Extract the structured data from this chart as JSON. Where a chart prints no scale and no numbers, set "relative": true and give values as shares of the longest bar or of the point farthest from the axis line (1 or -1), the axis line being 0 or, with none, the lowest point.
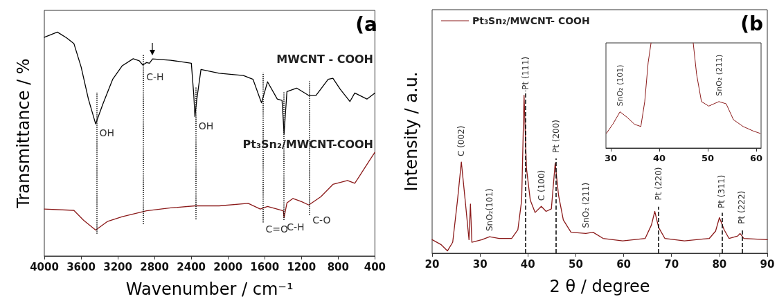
{
  "chart_data": [
    {
      "type": "line",
      "xlabel": "Wavenumber / cm⁻¹",
      "ylabel": "Transmittance / %",
      "relative": true,
      "xlim": [
        4000,
        400
      ],
      "xticks": [
        4000,
        3600,
        3200,
        2800,
        2400,
        2000,
        1600,
        1200,
        800,
        400
      ],
      "marker": "none",
      "line_style": "solid",
      "series": [
        {
          "name": "MWCNT - COOH",
          "color": "#000000",
          "x": [
            4000,
            3858,
            3757,
            3678,
            3599,
            3520,
            3441,
            3362,
            3256,
            3151,
            3032,
            2966,
            2927,
            2887,
            2855,
            2821,
            2623,
            2399,
            2373,
            2360,
            2339,
            2294,
            2096,
            1832,
            1727,
            1635,
            1569,
            1463,
            1411,
            1389,
            1358,
            1252,
            1120,
            1041,
            909,
            857,
            778,
            672,
            619,
            487,
            400
          ],
          "values": [
            0.977,
            1.0,
            0.974,
            0.949,
            0.844,
            0.701,
            0.59,
            0.679,
            0.789,
            0.85,
            0.881,
            0.872,
            0.853,
            0.864,
            0.861,
            0.88,
            0.874,
            0.861,
            0.723,
            0.623,
            0.701,
            0.833,
            0.816,
            0.806,
            0.789,
            0.684,
            0.778,
            0.701,
            0.695,
            0.546,
            0.734,
            0.75,
            0.717,
            0.717,
            0.789,
            0.794,
            0.745,
            0.69,
            0.728,
            0.701,
            0.728
          ]
        },
        {
          "name": "Pt₃Sn₂/MWCNT-COOH",
          "color": "#8b1a1a",
          "x": [
            4000,
            3678,
            3573,
            3441,
            3309,
            3151,
            2887,
            2623,
            2360,
            2096,
            1780,
            1648,
            1569,
            1397,
            1389,
            1358,
            1292,
            1199,
            1120,
            988,
            857,
            698,
            619,
            566,
            461,
            400
          ],
          "values": [
            0.21,
            0.204,
            0.16,
            0.116,
            0.155,
            0.176,
            0.202,
            0.215,
            0.224,
            0.224,
            0.235,
            0.21,
            0.221,
            0.202,
            0.171,
            0.237,
            0.257,
            0.243,
            0.228,
            0.265,
            0.32,
            0.337,
            0.325,
            0.358,
            0.425,
            0.463
          ]
        }
      ],
      "ref_lines": [
        {
          "axis": "x",
          "value": 3430,
          "color": "#000000",
          "line_style": "dotted"
        },
        {
          "axis": "x",
          "value": 2920,
          "color": "#000000",
          "line_style": "dotted"
        },
        {
          "axis": "x",
          "value": 2350,
          "color": "#000000",
          "line_style": "dotted"
        },
        {
          "axis": "x",
          "value": 1620,
          "color": "#000000",
          "line_style": "dotted"
        },
        {
          "axis": "x",
          "value": 1390,
          "color": "#000000",
          "line_style": "dotted"
        },
        {
          "axis": "x",
          "value": 1110,
          "color": "#000000",
          "line_style": "dotted"
        }
      ],
      "annotations": [
        "(a",
        {
          "text": "OH",
          "x": 3430,
          "y": 0.59
        },
        {
          "text": "C-H",
          "x": 2920,
          "y": 0.84
        },
        {
          "text": "OH",
          "x": 2350,
          "y": 0.62
        },
        {
          "text": "C=O",
          "x": 1620,
          "y": 0.16
        },
        {
          "text": "C-H",
          "x": 1389,
          "y": 0.171
        },
        {
          "text": "C-O",
          "x": 1110,
          "y": 0.2
        }
      ]
    },
    {
      "type": "line",
      "xlabel": "2 θ / degree",
      "ylabel": "Intensity / a.u.",
      "relative": true,
      "xlim": [
        20,
        90
      ],
      "xticks": [
        20,
        30,
        40,
        50,
        60,
        70,
        80,
        90
      ],
      "marker": "none",
      "line_style": "solid",
      "legend": "top left",
      "series": [
        {
          "name": "Pt₃Sn₂/MWCNT- COOH",
          "color": "#8b1a1a",
          "x": [
            20.0,
            21.9,
            23.2,
            24.3,
            25.3,
            26.1,
            26.9,
            27.7,
            28.0,
            28.3,
            30.4,
            32.0,
            34.0,
            36.6,
            37.9,
            38.7,
            39.2,
            39.7,
            40.5,
            41.5,
            42.8,
            43.8,
            44.9,
            45.7,
            46.4,
            47.4,
            49.0,
            52.1,
            53.6,
            55.7,
            59.8,
            64.5,
            65.8,
            66.5,
            67.3,
            68.6,
            72.7,
            77.9,
            79.2,
            80.0,
            81.0,
            82.0,
            83.8,
            84.3,
            85.1,
            90.0
          ],
          "values": [
            0.086,
            0.054,
            0.015,
            0.07,
            0.336,
            0.578,
            0.336,
            0.086,
            0.312,
            0.07,
            0.086,
            0.105,
            0.094,
            0.094,
            0.148,
            0.336,
            1.0,
            0.539,
            0.336,
            0.258,
            0.297,
            0.265,
            0.281,
            0.57,
            0.367,
            0.211,
            0.133,
            0.125,
            0.133,
            0.094,
            0.078,
            0.094,
            0.179,
            0.265,
            0.164,
            0.094,
            0.078,
            0.094,
            0.14,
            0.226,
            0.148,
            0.094,
            0.109,
            0.125,
            0.094,
            0.086
          ]
        }
      ],
      "ref_lines": [
        {
          "axis": "x",
          "value": 39.5,
          "color": "#000000",
          "line_style": "dashed"
        },
        {
          "axis": "x",
          "value": 45.9,
          "color": "#000000",
          "line_style": "dashed"
        },
        {
          "axis": "x",
          "value": 67.3,
          "color": "#000000",
          "line_style": "dashed"
        },
        {
          "axis": "x",
          "value": 80.5,
          "color": "#000000",
          "line_style": "dashed"
        },
        {
          "axis": "x",
          "value": 84.7,
          "color": "#000000",
          "line_style": "dashed"
        }
      ],
      "annotations": [
        "(b",
        {
          "text": "C (002)",
          "x": 26.1,
          "y": 0.578
        },
        {
          "text": "SnO₂(101)",
          "x": 32.0,
          "y": 0.105
        },
        {
          "text": "Pt (111)",
          "x": 39.5,
          "y": 1.0
        },
        {
          "text": "C (100)",
          "x": 42.8,
          "y": 0.297
        },
        {
          "text": "Pt (200)",
          "x": 45.9,
          "y": 0.6
        },
        {
          "text": "SnO₂ (211)",
          "x": 52.1,
          "y": 0.125
        },
        {
          "text": "Pt (220)",
          "x": 67.3,
          "y": 0.3
        },
        {
          "text": "Pt (311)",
          "x": 80.5,
          "y": 0.25
        },
        {
          "text": "Pt (222)",
          "x": 84.7,
          "y": 0.15
        }
      ]
    },
    {
      "type": "line",
      "relative": true,
      "xlim": [
        29,
        61
      ],
      "xticks": [
        30,
        40,
        50,
        60
      ],
      "marker": "none",
      "line_style": "solid",
      "series": [
        {
          "color": "#8b1a1a",
          "x": [
            29.1,
            30.4,
            31.9,
            33.4,
            34.9,
            36.2,
            37.0,
            37.7,
            38.3,
            42.0,
            47.0,
            47.7,
            48.7,
            50.2,
            52.3,
            53.8,
            55.3,
            57.3,
            59.4,
            60.8
          ],
          "values": [
            0.14,
            0.226,
            0.345,
            0.291,
            0.226,
            0.205,
            0.442,
            0.81,
            1.0,
            null,
            1.0,
            0.702,
            0.442,
            0.399,
            0.442,
            0.421,
            0.27,
            0.205,
            0.162,
            0.14
          ]
        }
      ],
      "annotations": [
        {
          "text": "SnO₂ (101)",
          "x": 31.9,
          "y": 0.345
        },
        {
          "text": "SnO₂ (211)",
          "x": 52.3,
          "y": 0.442
        }
      ]
    }
  ]
}
